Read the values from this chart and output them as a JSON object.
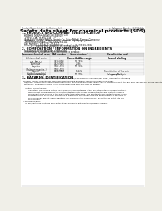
{
  "bg_color": "#f0efe8",
  "page_bg": "#ffffff",
  "header_left": "Product Name: Lithium Ion Battery Cell",
  "header_right_line1": "Substance Number: FS3VS-14A",
  "header_right_line2": "Established / Revision: Dec.1 2010",
  "title": "Safety data sheet for chemical products (SDS)",
  "section1_title": "1. PRODUCT AND COMPANY IDENTIFICATION",
  "section1_lines": [
    " • Product name: Lithium Ion Battery Cell",
    " • Product code: Cylindrical-type cell",
    "     FS3VS-14A, FS3VS-14A",
    " • Company name:   Sanyo Electric Co., Ltd., Mobile Energy Company",
    " • Address:        2001 Kamionkubo, Sumoto-City, Hyogo, Japan",
    " • Telephone number:  +81-799-26-4111",
    " • Fax number:  +81-799-26-4121",
    " • Emergency telephone number (Weekday) +81-799-26-3862",
    "                    (Night and holiday) +81-799-26-4121"
  ],
  "section2_title": "2. COMPOSITION / INFORMATION ON INGREDIENTS",
  "section2_lines": [
    " • Substance or preparation: Preparation",
    " • Information about the chemical nature of product:"
  ],
  "table_col_labels": [
    "Common chemical name",
    "CAS number",
    "Concentration /\nConcentration range",
    "Classification and\nhazard labeling"
  ],
  "table_rows": [
    [
      "Lithium cobalt oxide\n(LiMn₂/CoO₂)",
      "-",
      "30-60%",
      "-"
    ],
    [
      "Iron",
      "7439-89-6",
      "15-25%",
      "-"
    ],
    [
      "Aluminum",
      "7429-90-5",
      "2-8%",
      "-"
    ],
    [
      "Graphite\n(Flake or graphite-1)\n(Artificial graphite)",
      "7782-42-5\n7782-42-5",
      "10-25%",
      "-"
    ],
    [
      "Copper",
      "7440-50-8",
      "5-15%",
      "Sensitization of the skin\ngroup No.2"
    ],
    [
      "Organic electrolyte",
      "-",
      "10-20%",
      "Inflammable liquid"
    ]
  ],
  "section3_title": "3. HAZARDS IDENTIFICATION",
  "section3_body": [
    "  For the battery cell, chemical materials are stored in a hermetically sealed metal case, designed to withstand",
    "  temperatures encountered by electro-chemical reactions during normal use. As a result, during normal use, there is no",
    "  physical danger of ignition or explosion and thermical danger of hazardous material leakage.",
    "    However, if exposed to a fire, added mechanical shocks, decomposed, when electro chemicals react, the gas may release and not be operated. The battery cell case will be breached at fire-patterns, hazardous",
    "  matters may be released.",
    "    Moreover, if heated strongly by the surrounding fire, toxic gas may be emitted.",
    "",
    "  • Most important hazard and effects:",
    "      Human health effects:",
    "          Inhalation: The release of the electrolyte has an anesthesia action and stimulates in respiratory tract.",
    "          Skin contact: The release of the electrolyte stimulates a skin. The electrolyte skin contact causes a",
    "          sore and stimulation on the skin.",
    "          Eye contact: The release of the electrolyte stimulates eyes. The electrolyte eye contact causes a sore",
    "          and stimulation on the eye. Especially, a substance that causes a strong inflammation of the eyes is",
    "          contained.",
    "          Environmental effects: Since a battery cell remains in the environment, do not throw out it into the",
    "          environment.",
    "",
    "  • Specific hazards:",
    "      If the electrolyte contacts with water, it will generate detrimental hydrogen fluoride.",
    "      Since the used electrolyte is inflammable liquid, do not bring close to fire."
  ]
}
